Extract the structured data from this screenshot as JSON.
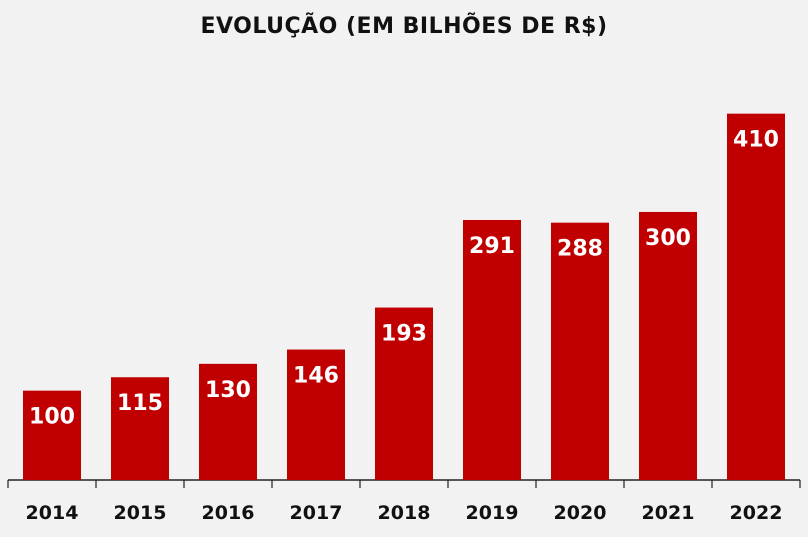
{
  "chart_data": {
    "type": "bar",
    "title": "EVOLUÇÃO (EM BILHÕES DE R$)",
    "categories": [
      "2014",
      "2015",
      "2016",
      "2017",
      "2018",
      "2019",
      "2020",
      "2021",
      "2022"
    ],
    "values": [
      100,
      115,
      130,
      146,
      193,
      291,
      288,
      300,
      410
    ],
    "value_labels": [
      "100",
      "115",
      "130",
      "146",
      "193",
      "291",
      "288",
      "300",
      "410"
    ],
    "xlabel": "",
    "ylabel": "",
    "ylim": [
      0,
      450
    ],
    "grid": false,
    "bar_color": "#c00000",
    "label_color": "#ffffff",
    "axis_color": "#222222"
  }
}
